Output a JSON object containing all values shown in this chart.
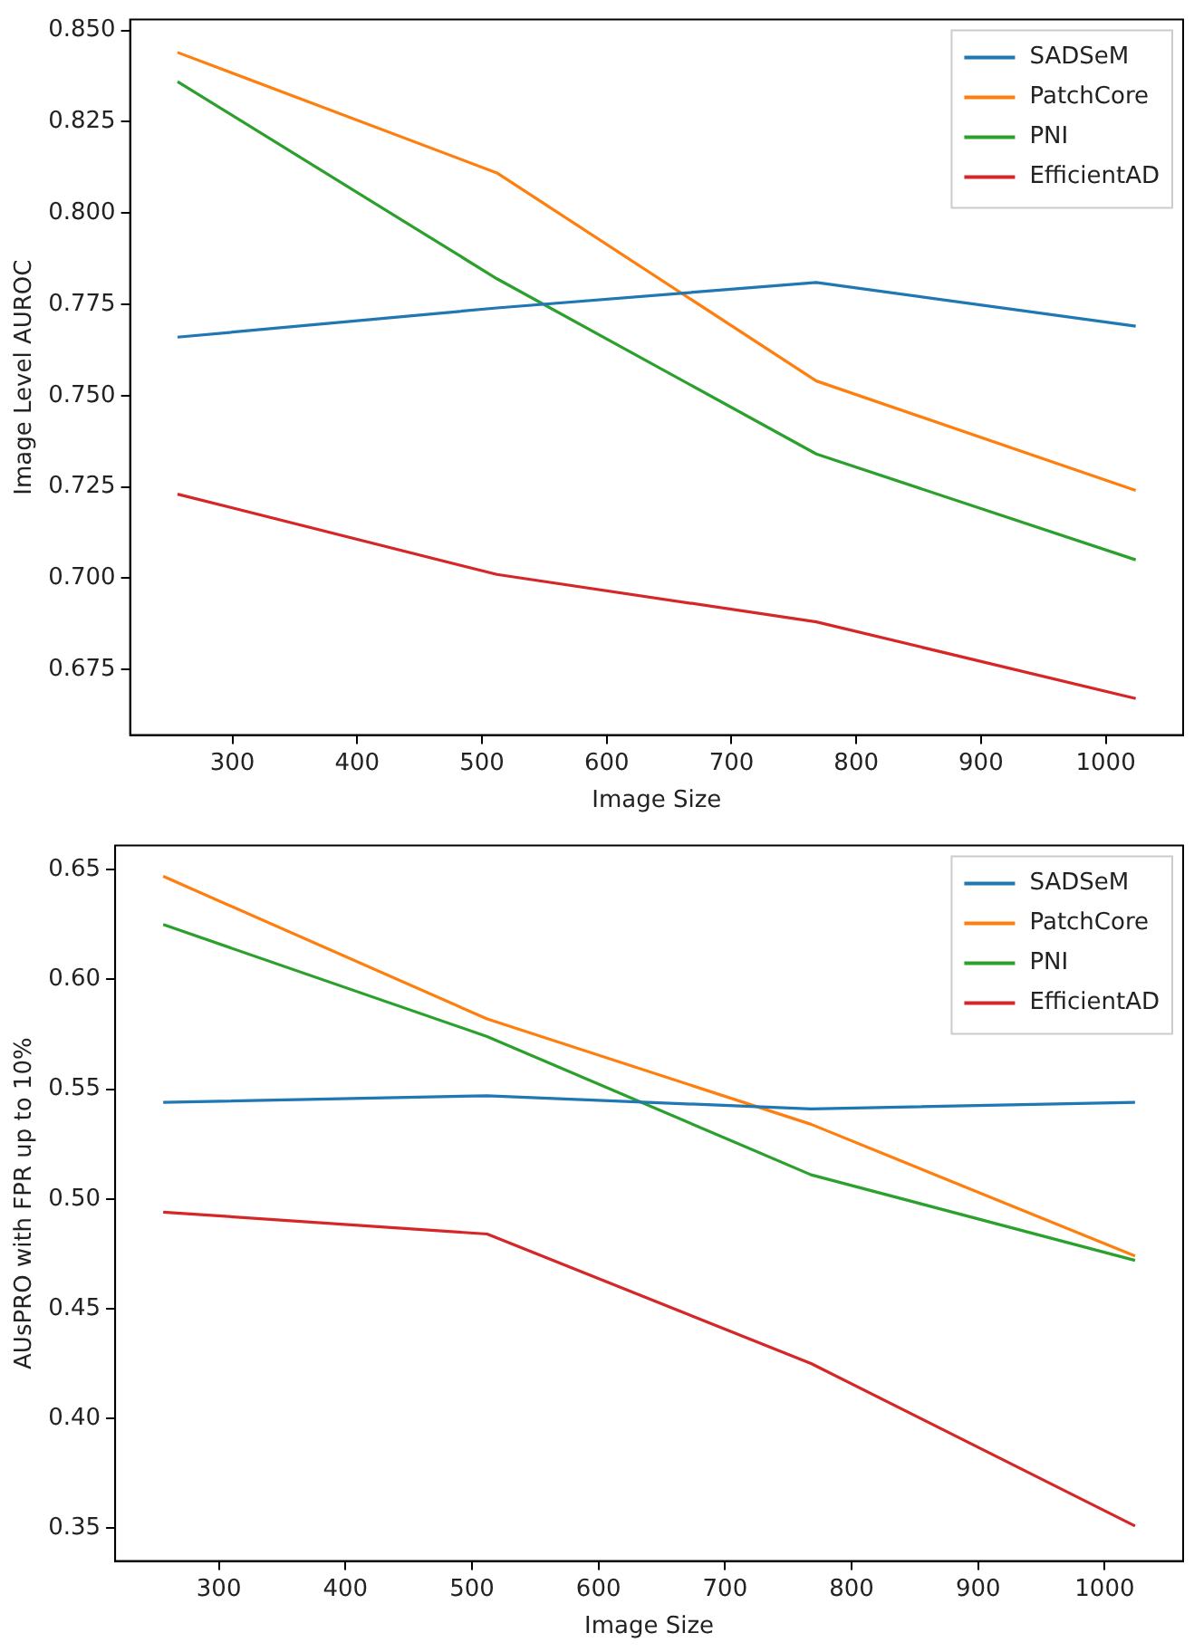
{
  "chart_data": [
    {
      "type": "line",
      "xlabel": "Image Size",
      "ylabel": "Image Level AUROC",
      "x": [
        256,
        512,
        768,
        1024
      ],
      "xlim": [
        218,
        1062
      ],
      "xticks": [
        300,
        400,
        500,
        600,
        700,
        800,
        900,
        1000
      ],
      "ylim": [
        0.657,
        0.853
      ],
      "yticks": [
        0.675,
        {
          "value": 0.7,
          "label": "0.700"
        },
        0.725,
        {
          "value": 0.75,
          "label": "0.750"
        },
        0.775,
        {
          "value": 0.8,
          "label": "0.800"
        },
        0.825,
        {
          "value": 0.85,
          "label": "0.850"
        }
      ],
      "grid": false,
      "legend": "top right",
      "marker": "none",
      "line_style": "solid",
      "series": [
        {
          "name": "SADSeM",
          "color": "#1f77b4",
          "values": [
            0.766,
            0.774,
            0.781,
            0.769
          ]
        },
        {
          "name": "PatchCore",
          "color": "#ff7f0e",
          "values": [
            0.844,
            0.811,
            0.754,
            0.724
          ]
        },
        {
          "name": "PNI",
          "color": "#2ca02c",
          "values": [
            0.836,
            0.782,
            0.734,
            0.705
          ]
        },
        {
          "name": "EfficientAD",
          "color": "#d62728",
          "values": [
            0.723,
            0.701,
            0.688,
            0.667
          ]
        }
      ]
    },
    {
      "type": "line",
      "xlabel": "Image Size",
      "ylabel": "AUsPRO with FPR up to 10%",
      "x": [
        256,
        512,
        768,
        1024
      ],
      "xlim": [
        218,
        1062
      ],
      "xticks": [
        300,
        400,
        500,
        600,
        700,
        800,
        900,
        1000
      ],
      "ylim": [
        0.335,
        0.661
      ],
      "yticks": [
        0.35,
        {
          "value": 0.4,
          "label": "0.40"
        },
        0.45,
        {
          "value": 0.5,
          "label": "0.50"
        },
        0.55,
        {
          "value": 0.6,
          "label": "0.60"
        },
        0.65
      ],
      "grid": false,
      "legend": "top right",
      "marker": "none",
      "line_style": "solid",
      "series": [
        {
          "name": "SADSeM",
          "color": "#1f77b4",
          "values": [
            0.544,
            0.547,
            0.541,
            0.544
          ]
        },
        {
          "name": "PatchCore",
          "color": "#ff7f0e",
          "values": [
            0.647,
            0.582,
            0.534,
            0.474
          ]
        },
        {
          "name": "PNI",
          "color": "#2ca02c",
          "values": [
            0.625,
            0.574,
            0.511,
            0.472
          ]
        },
        {
          "name": "EfficientAD",
          "color": "#d62728",
          "values": [
            0.494,
            0.484,
            0.425,
            0.351
          ]
        }
      ]
    }
  ]
}
